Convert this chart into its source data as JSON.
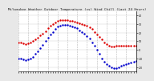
{
  "title": "Milwaukee Weather Outdoor Temperature (vs) Wind Chill (Last 24 Hours)",
  "title_fontsize": 3.0,
  "background_color": "#e8e8e8",
  "plot_bg": "#ffffff",
  "ylim": [
    -25,
    45
  ],
  "xlim": [
    0,
    24
  ],
  "grid_color": "#999999",
  "temp_color": "#dd0000",
  "chill_color": "#0000cc",
  "marker_size": 1.5,
  "temp_data": [
    [
      0,
      9
    ],
    [
      0.5,
      9
    ],
    [
      1,
      8
    ],
    [
      1.5,
      7
    ],
    [
      2,
      8
    ],
    [
      2.5,
      9
    ],
    [
      3,
      10
    ],
    [
      3.5,
      12
    ],
    [
      4,
      14
    ],
    [
      4.5,
      17
    ],
    [
      5,
      19
    ],
    [
      5.5,
      22
    ],
    [
      6,
      25
    ],
    [
      6.5,
      28
    ],
    [
      7,
      30
    ],
    [
      7.5,
      32
    ],
    [
      8,
      34
    ],
    [
      8.5,
      35
    ],
    [
      9,
      35
    ],
    [
      9.5,
      35
    ],
    [
      10,
      35
    ],
    [
      10.5,
      34
    ],
    [
      11,
      34
    ],
    [
      11.5,
      33
    ],
    [
      12,
      32
    ],
    [
      12.5,
      31
    ],
    [
      13,
      30
    ],
    [
      13.5,
      29
    ],
    [
      14,
      28
    ],
    [
      14.5,
      26
    ],
    [
      15,
      24
    ],
    [
      15.5,
      21
    ],
    [
      16,
      18
    ],
    [
      16.5,
      15
    ],
    [
      17,
      12
    ],
    [
      17.5,
      9
    ],
    [
      18,
      7
    ],
    [
      18.5,
      5
    ],
    [
      19,
      4
    ],
    [
      19.5,
      4
    ],
    [
      20,
      5
    ],
    [
      20.5,
      5
    ],
    [
      21,
      5
    ],
    [
      21.5,
      5
    ],
    [
      22,
      5
    ],
    [
      22.5,
      5
    ],
    [
      23,
      5
    ],
    [
      23.5,
      5
    ],
    [
      24,
      5
    ]
  ],
  "chill_data": [
    [
      0,
      -10
    ],
    [
      0.5,
      -10
    ],
    [
      1,
      -11
    ],
    [
      1.5,
      -12
    ],
    [
      2,
      -11
    ],
    [
      2.5,
      -10
    ],
    [
      3,
      -8
    ],
    [
      3.5,
      -5
    ],
    [
      4,
      -2
    ],
    [
      4.5,
      2
    ],
    [
      5,
      6
    ],
    [
      5.5,
      10
    ],
    [
      6,
      14
    ],
    [
      6.5,
      18
    ],
    [
      7,
      21
    ],
    [
      7.5,
      24
    ],
    [
      8,
      27
    ],
    [
      8.5,
      28
    ],
    [
      9,
      29
    ],
    [
      9.5,
      29
    ],
    [
      10,
      29
    ],
    [
      10.5,
      28
    ],
    [
      11,
      27
    ],
    [
      11.5,
      26
    ],
    [
      12,
      25
    ],
    [
      12.5,
      23
    ],
    [
      13,
      21
    ],
    [
      13.5,
      19
    ],
    [
      14,
      16
    ],
    [
      14.5,
      13
    ],
    [
      15,
      9
    ],
    [
      15.5,
      5
    ],
    [
      16,
      0
    ],
    [
      16.5,
      -5
    ],
    [
      17,
      -10
    ],
    [
      17.5,
      -14
    ],
    [
      18,
      -17
    ],
    [
      18.5,
      -19
    ],
    [
      19,
      -20
    ],
    [
      19.5,
      -21
    ],
    [
      20,
      -21
    ],
    [
      20.5,
      -20
    ],
    [
      21,
      -19
    ],
    [
      21.5,
      -18
    ],
    [
      22,
      -17
    ],
    [
      22.5,
      -16
    ],
    [
      23,
      -15
    ],
    [
      23.5,
      -14
    ],
    [
      24,
      -13
    ]
  ]
}
